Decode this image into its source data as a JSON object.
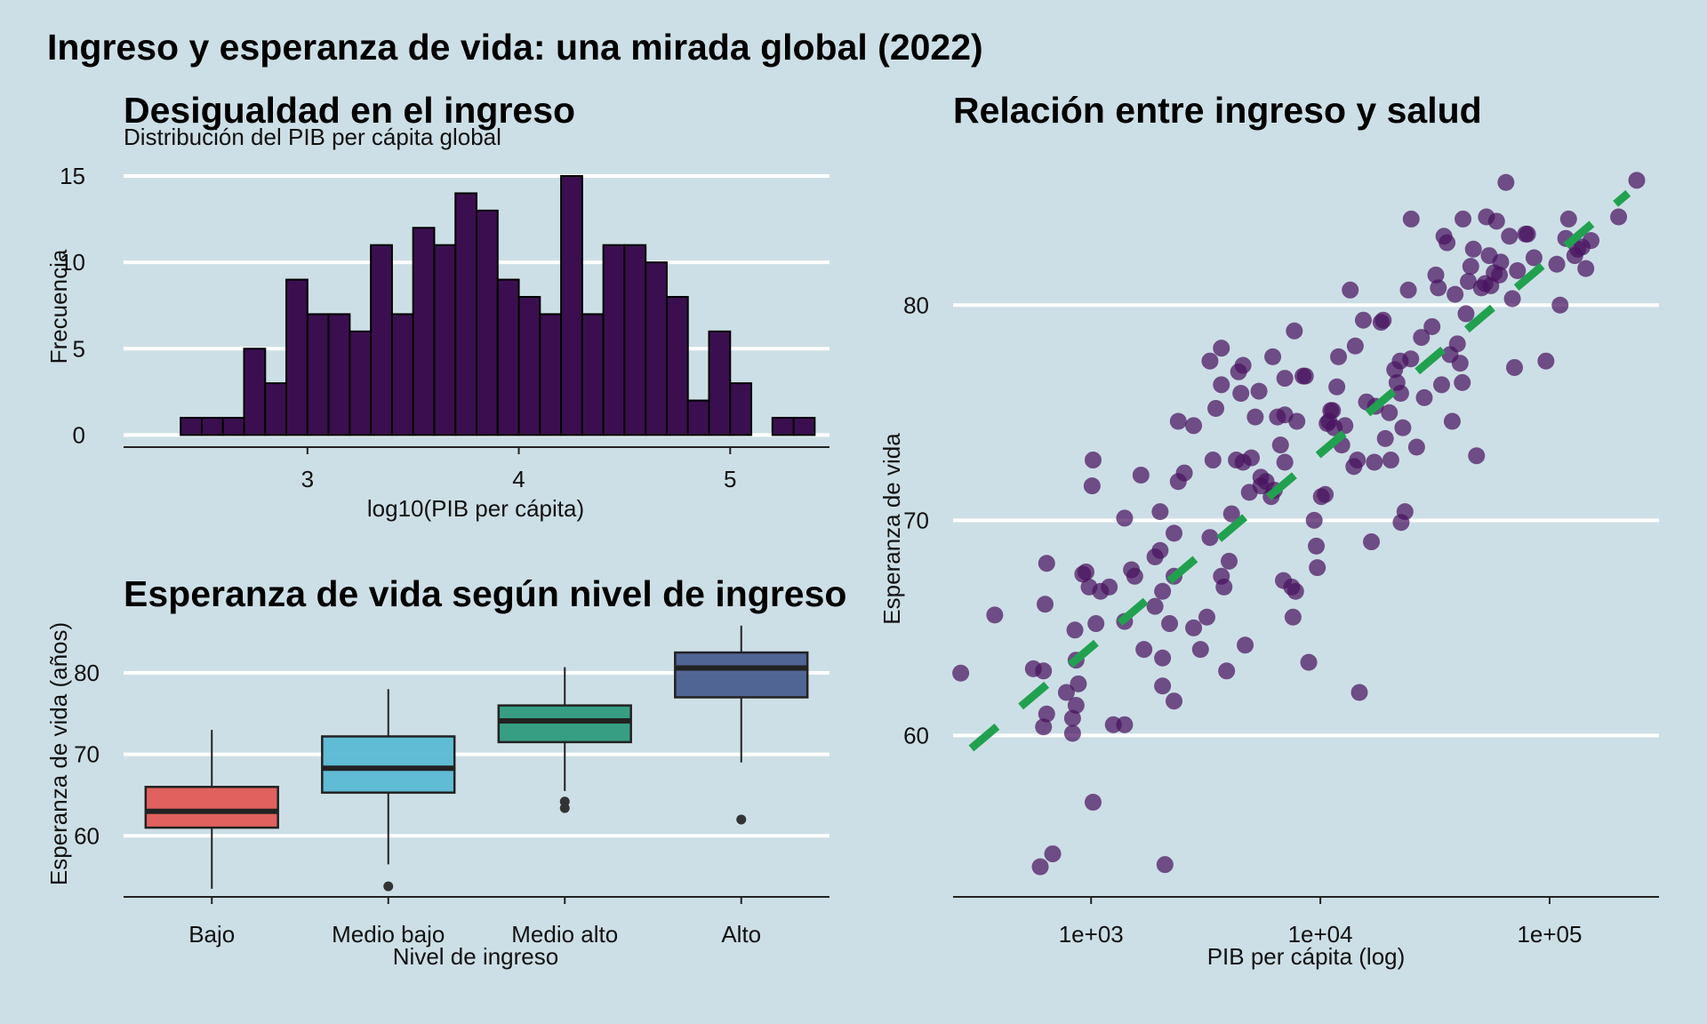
{
  "page_title": "Ingreso y esperanza de vida: una mirada global (2022)",
  "colors": {
    "background": "#cddfe6",
    "hist_fill": "#3b0f4f",
    "scatter_point": "#4a1460",
    "trend_line": "#21a150",
    "box_bajo": "#e05a55",
    "box_medio_bajo": "#5ab8d4",
    "box_medio_alto": "#2e9a7e",
    "box_alto": "#4a5e8f"
  },
  "chart_data": [
    {
      "type": "bar",
      "subtype": "histogram",
      "title": "Desigualdad en el ingreso",
      "subtitle": "Distribución del PIB per cápita global",
      "xlabel": "log10(PIB per cápita)",
      "ylabel": "Frecuencia",
      "bin_width": 0.1,
      "bin_start": 2.4,
      "values": [
        1,
        1,
        1,
        5,
        3,
        9,
        7,
        7,
        6,
        11,
        7,
        12,
        11,
        14,
        13,
        9,
        8,
        7,
        15,
        7,
        11,
        11,
        10,
        8,
        2,
        6,
        3,
        0,
        1,
        1
      ],
      "xlim": [
        2.13,
        5.47
      ],
      "ylim": [
        -0.7,
        15
      ],
      "xticks": [
        "3",
        "4",
        "5"
      ],
      "yticks": [
        "0",
        "5",
        "10",
        "15"
      ],
      "grid": "horizontal"
    },
    {
      "type": "box",
      "title": "Esperanza de vida según nivel de ingreso",
      "xlabel": "Nivel de ingreso",
      "ylabel": "Esperanza de vida (años)",
      "categories": [
        "Bajo",
        "Medio bajo",
        "Medio alto",
        "Alto"
      ],
      "boxes": [
        {
          "whisker_low": 53.5,
          "q1": 61.0,
          "median": 63.0,
          "q3": 66.0,
          "whisker_high": 73.0,
          "outliers": []
        },
        {
          "whisker_low": 56.5,
          "q1": 65.3,
          "median": 68.3,
          "q3": 72.2,
          "whisker_high": 78.0,
          "outliers": [
            53.8
          ]
        },
        {
          "whisker_low": 65.5,
          "q1": 71.5,
          "median": 74.1,
          "q3": 76.0,
          "whisker_high": 80.7,
          "outliers": [
            64.2,
            63.4
          ]
        },
        {
          "whisker_low": 69.0,
          "q1": 77.0,
          "median": 80.6,
          "q3": 82.5,
          "whisker_high": 85.8,
          "outliers": [
            62.0
          ]
        }
      ],
      "ylim": [
        52.5,
        86
      ],
      "yticks": [
        "60",
        "70",
        "80"
      ],
      "grid": "horizontal"
    },
    {
      "type": "scatter",
      "title": "Relación entre ingreso y salud",
      "xlabel": "PIB per cápita (log)",
      "ylabel": "Esperanza de vida",
      "x_scale": "log10",
      "xlim": [
        250,
        300000
      ],
      "ylim": [
        52.5,
        86
      ],
      "xticks": [
        "1e+03",
        "1e+04",
        "1e+05"
      ],
      "yticks": [
        "60",
        "70",
        "80"
      ],
      "grid": "horizontal",
      "trend_line": {
        "style": "dashed",
        "x": [
          300,
          220000
        ],
        "y": [
          59.4,
          85.2
        ]
      },
      "points": [
        [
          270,
          62.9
        ],
        [
          380,
          65.6
        ],
        [
          560,
          63.1
        ],
        [
          620,
          60.4
        ],
        [
          640,
          61.0
        ],
        [
          620,
          63.0
        ],
        [
          630,
          66.1
        ],
        [
          640,
          68.0
        ],
        [
          600,
          53.9
        ],
        [
          680,
          54.5
        ],
        [
          780,
          62.0
        ],
        [
          830,
          60.1
        ],
        [
          830,
          60.8
        ],
        [
          860,
          61.4
        ],
        [
          880,
          62.4
        ],
        [
          860,
          63.5
        ],
        [
          850,
          64.9
        ],
        [
          920,
          67.5
        ],
        [
          950,
          67.6
        ],
        [
          980,
          66.9
        ],
        [
          1050,
          65.2
        ],
        [
          1100,
          66.7
        ],
        [
          1200,
          66.9
        ],
        [
          1250,
          60.5
        ],
        [
          1400,
          60.5
        ],
        [
          1010,
          71.6
        ],
        [
          1020,
          72.8
        ],
        [
          1020,
          56.9
        ],
        [
          1400,
          65.3
        ],
        [
          1500,
          67.7
        ],
        [
          1550,
          67.4
        ],
        [
          1400,
          70.1
        ],
        [
          1650,
          72.1
        ],
        [
          1700,
          64.0
        ],
        [
          1900,
          66.0
        ],
        [
          1900,
          68.3
        ],
        [
          2000,
          70.4
        ],
        [
          2000,
          68.6
        ],
        [
          2050,
          66.7
        ],
        [
          2050,
          62.3
        ],
        [
          2050,
          63.6
        ],
        [
          2100,
          54.0
        ],
        [
          2200,
          65.2
        ],
        [
          2300,
          61.6
        ],
        [
          2300,
          67.4
        ],
        [
          2400,
          74.6
        ],
        [
          2400,
          71.8
        ],
        [
          2300,
          69.4
        ],
        [
          2550,
          72.2
        ],
        [
          2800,
          74.4
        ],
        [
          2800,
          65.0
        ],
        [
          3000,
          64.0
        ],
        [
          3200,
          65.5
        ],
        [
          3300,
          69.2
        ],
        [
          3400,
          72.8
        ],
        [
          3300,
          77.4
        ],
        [
          3500,
          75.2
        ],
        [
          3700,
          76.3
        ],
        [
          3700,
          78.0
        ],
        [
          3700,
          67.4
        ],
        [
          3800,
          66.9
        ],
        [
          3900,
          63.0
        ],
        [
          4000,
          68.1
        ],
        [
          4100,
          70.3
        ],
        [
          4300,
          72.8
        ],
        [
          4400,
          76.9
        ],
        [
          4500,
          75.9
        ],
        [
          4600,
          72.7
        ],
        [
          4600,
          77.2
        ],
        [
          4700,
          64.2
        ],
        [
          4900,
          71.3
        ],
        [
          5000,
          72.9
        ],
        [
          5200,
          74.8
        ],
        [
          5400,
          76.0
        ],
        [
          5500,
          72.0
        ],
        [
          5500,
          71.6
        ],
        [
          5800,
          71.8
        ],
        [
          6100,
          71.1
        ],
        [
          6200,
          77.6
        ],
        [
          6300,
          71.4
        ],
        [
          6500,
          74.8
        ],
        [
          6700,
          73.5
        ],
        [
          7000,
          74.9
        ],
        [
          7000,
          72.7
        ],
        [
          7000,
          76.6
        ],
        [
          6900,
          67.2
        ],
        [
          7500,
          66.9
        ],
        [
          7800,
          66.7
        ],
        [
          7600,
          65.5
        ],
        [
          7900,
          74.6
        ],
        [
          8400,
          76.7
        ],
        [
          8600,
          76.7
        ],
        [
          7700,
          78.8
        ],
        [
          8900,
          63.4
        ],
        [
          9400,
          70.0
        ],
        [
          9600,
          68.8
        ],
        [
          9700,
          67.8
        ],
        [
          10100,
          71.1
        ],
        [
          10500,
          71.2
        ],
        [
          10700,
          74.5
        ],
        [
          10900,
          74.6
        ],
        [
          11100,
          75.1
        ],
        [
          11300,
          75.1
        ],
        [
          11500,
          74.3
        ],
        [
          11800,
          76.2
        ],
        [
          12000,
          77.6
        ],
        [
          12400,
          73.5
        ],
        [
          12800,
          74.4
        ],
        [
          13500,
          80.7
        ],
        [
          14000,
          72.5
        ],
        [
          14200,
          78.1
        ],
        [
          14500,
          72.8
        ],
        [
          14800,
          62.0
        ],
        [
          15400,
          79.3
        ],
        [
          15900,
          75.5
        ],
        [
          16700,
          69.0
        ],
        [
          17200,
          72.7
        ],
        [
          17400,
          75.3
        ],
        [
          18400,
          79.2
        ],
        [
          18800,
          79.3
        ],
        [
          19200,
          73.8
        ],
        [
          20000,
          75.0
        ],
        [
          20300,
          72.8
        ],
        [
          21100,
          77.0
        ],
        [
          21600,
          76.4
        ],
        [
          22300,
          77.4
        ],
        [
          22400,
          75.9
        ],
        [
          22900,
          74.3
        ],
        [
          22500,
          69.9
        ],
        [
          23400,
          70.4
        ],
        [
          24200,
          80.7
        ],
        [
          24800,
          77.5
        ],
        [
          24900,
          84.0
        ],
        [
          26300,
          73.4
        ],
        [
          27600,
          78.5
        ],
        [
          28400,
          75.7
        ],
        [
          30700,
          79.0
        ],
        [
          31900,
          81.4
        ],
        [
          32700,
          80.8
        ],
        [
          33800,
          76.3
        ],
        [
          34600,
          83.2
        ],
        [
          35700,
          82.9
        ],
        [
          36800,
          77.7
        ],
        [
          37600,
          74.6
        ],
        [
          38700,
          80.5
        ],
        [
          39600,
          78.2
        ],
        [
          40700,
          77.3
        ],
        [
          41600,
          76.4
        ],
        [
          41900,
          84.0
        ],
        [
          43200,
          79.6
        ],
        [
          44200,
          81.1
        ],
        [
          45300,
          81.8
        ],
        [
          46500,
          82.6
        ],
        [
          48000,
          73.0
        ],
        [
          50400,
          80.8
        ],
        [
          52300,
          81.0
        ],
        [
          53000,
          84.1
        ],
        [
          54500,
          82.3
        ],
        [
          55400,
          80.9
        ],
        [
          57300,
          81.5
        ],
        [
          58700,
          83.9
        ],
        [
          60400,
          81.4
        ],
        [
          61200,
          82.0
        ],
        [
          64500,
          85.7
        ],
        [
          66800,
          83.2
        ],
        [
          68800,
          80.3
        ],
        [
          70300,
          77.1
        ],
        [
          72400,
          81.6
        ],
        [
          78600,
          83.3
        ],
        [
          80100,
          83.3
        ],
        [
          85500,
          82.2
        ],
        [
          96400,
          77.4
        ],
        [
          107500,
          81.9
        ],
        [
          111100,
          80.0
        ],
        [
          117600,
          83.1
        ],
        [
          121000,
          84.0
        ],
        [
          128800,
          82.3
        ],
        [
          132600,
          82.6
        ],
        [
          138500,
          82.7
        ],
        [
          143900,
          81.7
        ],
        [
          151600,
          83.0
        ],
        [
          200000,
          84.1
        ],
        [
          240000,
          85.8
        ]
      ]
    }
  ]
}
